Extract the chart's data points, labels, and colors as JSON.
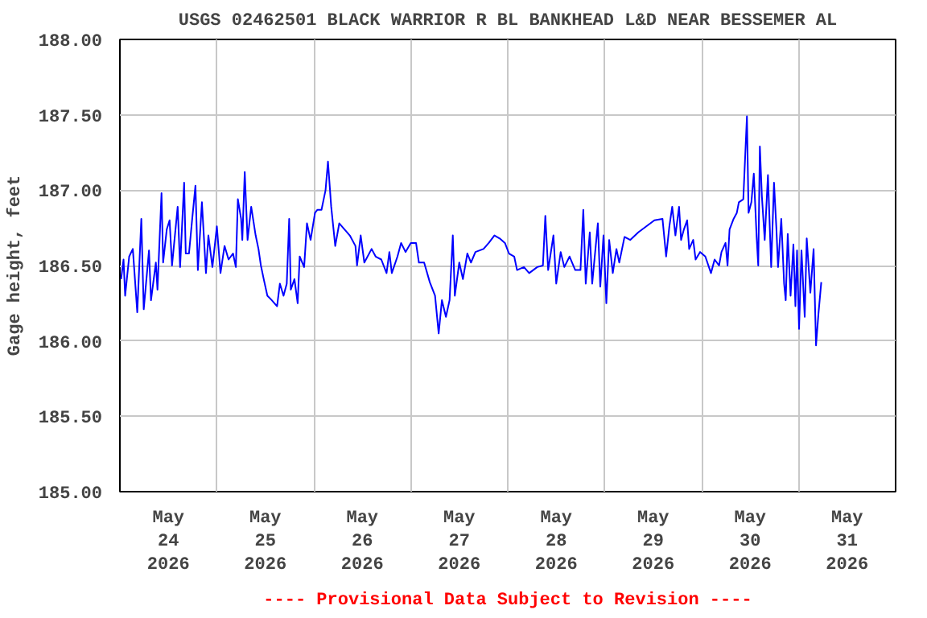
{
  "chart_data": {
    "type": "line",
    "title": "USGS 02462501 BLACK WARRIOR R BL BANKHEAD L&D NEAR BESSEMER AL",
    "ylabel": "Gage height, feet",
    "annotations": [
      "---- Provisional Data Subject to Revision ----"
    ],
    "xlim": [
      "2026-05-24T00:00",
      "2026-06-01T00:00"
    ],
    "ylim": [
      185,
      188
    ],
    "xticks": [
      {
        "value": "2026-05-24T00:00",
        "label": null
      },
      {
        "value": "2026-05-24T12:00",
        "label": "May\n24\n2026"
      },
      {
        "value": "2026-05-25T00:00",
        "label": null
      },
      {
        "value": "2026-05-25T12:00",
        "label": "May\n25\n2026"
      },
      {
        "value": "2026-05-26T00:00",
        "label": null
      },
      {
        "value": "2026-05-26T12:00",
        "label": "May\n26\n2026"
      },
      {
        "value": "2026-05-27T00:00",
        "label": null
      },
      {
        "value": "2026-05-27T12:00",
        "label": "May\n27\n2026"
      },
      {
        "value": "2026-05-28T00:00",
        "label": null
      },
      {
        "value": "2026-05-28T12:00",
        "label": "May\n28\n2026"
      },
      {
        "value": "2026-05-29T00:00",
        "label": null
      },
      {
        "value": "2026-05-29T12:00",
        "label": "May\n29\n2026"
      },
      {
        "value": "2026-05-30T00:00",
        "label": null
      },
      {
        "value": "2026-05-30T12:00",
        "label": "May\n30\n2026"
      },
      {
        "value": "2026-05-31T00:00",
        "label": null
      },
      {
        "value": "2026-05-31T12:00",
        "label": "May\n31\n2026"
      },
      {
        "value": "2026-06-01T00:00",
        "label": null
      }
    ],
    "yticks": [
      {
        "value": 185,
        "label": "185.00"
      },
      {
        "value": 185.5,
        "label": "185.50"
      },
      {
        "value": 186,
        "label": "186.00"
      },
      {
        "value": 186.5,
        "label": "186.50"
      },
      {
        "value": 187,
        "label": "187.00"
      },
      {
        "value": 187.5,
        "label": "187.50"
      },
      {
        "value": 188,
        "label": "188.00"
      }
    ],
    "grid": true,
    "marker": "none",
    "line_style": "solid",
    "series": [
      {
        "color": "#0000ff",
        "x": [
          "2026-05-24T00:18",
          "2026-05-24T00:54",
          "2026-05-24T01:18",
          "2026-05-24T02:18",
          "2026-05-24T03:12",
          "2026-05-24T04:18",
          "2026-05-24T05:18",
          "2026-05-24T05:54",
          "2026-05-24T07:12",
          "2026-05-24T07:42",
          "2026-05-24T08:54",
          "2026-05-24T09:18",
          "2026-05-24T10:18",
          "2026-05-24T10:42",
          "2026-05-24T11:36",
          "2026-05-24T12:18",
          "2026-05-24T12:54",
          "2026-05-24T14:18",
          "2026-05-24T14:54",
          "2026-05-24T15:54",
          "2026-05-24T16:18",
          "2026-05-24T17:06",
          "2026-05-24T17:54",
          "2026-05-24T18:42",
          "2026-05-24T19:18",
          "2026-05-24T20:18",
          "2026-05-24T21:18",
          "2026-05-24T21:54",
          "2026-05-24T22:54",
          "2026-05-25T00:00",
          "2026-05-25T00:54",
          "2026-05-25T01:54",
          "2026-05-25T02:54",
          "2026-05-25T04:00",
          "2026-05-25T04:42",
          "2026-05-25T05:12",
          "2026-05-25T06:00",
          "2026-05-25T06:18",
          "2026-05-25T06:54",
          "2026-05-25T07:36",
          "2026-05-25T08:30",
          "2026-05-25T09:36",
          "2026-05-25T10:18",
          "2026-05-25T10:54",
          "2026-05-25T11:36",
          "2026-05-25T12:30",
          "2026-05-25T13:36",
          "2026-05-25T14:54",
          "2026-05-25T15:36",
          "2026-05-25T16:30",
          "2026-05-25T17:18",
          "2026-05-25T17:54",
          "2026-05-25T18:18",
          "2026-05-25T19:12",
          "2026-05-25T20:00",
          "2026-05-25T20:30",
          "2026-05-25T21:36",
          "2026-05-25T22:18",
          "2026-05-25T23:12",
          "2026-05-26T00:18",
          "2026-05-26T00:54",
          "2026-05-26T01:54",
          "2026-05-26T02:54",
          "2026-05-26T03:30",
          "2026-05-26T04:18",
          "2026-05-26T05:18",
          "2026-05-26T06:18",
          "2026-05-26T07:36",
          "2026-05-26T08:54",
          "2026-05-26T10:18",
          "2026-05-26T10:42",
          "2026-05-26T11:36",
          "2026-05-26T12:30",
          "2026-05-26T14:18",
          "2026-05-26T15:18",
          "2026-05-26T16:42",
          "2026-05-26T18:00",
          "2026-05-26T18:42",
          "2026-05-26T19:18",
          "2026-05-26T20:42",
          "2026-05-26T21:36",
          "2026-05-26T22:42",
          "2026-05-27T00:00",
          "2026-05-27T01:18",
          "2026-05-27T02:00",
          "2026-05-27T03:18",
          "2026-05-27T04:42",
          "2026-05-27T06:00",
          "2026-05-27T06:54",
          "2026-05-27T07:42",
          "2026-05-27T08:42",
          "2026-05-27T09:36",
          "2026-05-27T10:24",
          "2026-05-27T10:54",
          "2026-05-27T12:00",
          "2026-05-27T12:54",
          "2026-05-27T14:00",
          "2026-05-27T14:54",
          "2026-05-27T16:00",
          "2026-05-27T18:00",
          "2026-05-27T19:18",
          "2026-05-27T20:42",
          "2026-05-27T22:00",
          "2026-05-27T23:18",
          "2026-05-28T00:18",
          "2026-05-28T01:36",
          "2026-05-28T02:18",
          "2026-05-28T04:00",
          "2026-05-28T05:18",
          "2026-05-28T07:18",
          "2026-05-28T08:42",
          "2026-05-28T09:18",
          "2026-05-28T10:00",
          "2026-05-28T11:18",
          "2026-05-28T12:00",
          "2026-05-28T13:06",
          "2026-05-28T14:00",
          "2026-05-28T15:18",
          "2026-05-28T16:42",
          "2026-05-28T18:00",
          "2026-05-28T18:42",
          "2026-05-28T19:18",
          "2026-05-28T20:18",
          "2026-05-28T20:54",
          "2026-05-28T22:18",
          "2026-05-28T22:54",
          "2026-05-28T23:42",
          "2026-05-29T00:24",
          "2026-05-29T01:06",
          "2026-05-29T02:00",
          "2026-05-29T02:54",
          "2026-05-29T03:36",
          "2026-05-29T04:54",
          "2026-05-29T06:18",
          "2026-05-29T08:18",
          "2026-05-29T10:18",
          "2026-05-29T12:18",
          "2026-05-29T14:18",
          "2026-05-29T15:12",
          "2026-05-29T16:00",
          "2026-05-29T16:42",
          "2026-05-29T17:30",
          "2026-05-29T18:24",
          "2026-05-29T18:54",
          "2026-05-29T19:36",
          "2026-05-29T20:24",
          "2026-05-29T20:54",
          "2026-05-29T21:54",
          "2026-05-29T22:30",
          "2026-05-29T23:36",
          "2026-05-30T00:54",
          "2026-05-30T02:18",
          "2026-05-30T03:12",
          "2026-05-30T04:18",
          "2026-05-30T04:54",
          "2026-05-30T05:54",
          "2026-05-30T06:24",
          "2026-05-30T06:54",
          "2026-05-30T07:54",
          "2026-05-30T08:42",
          "2026-05-30T09:12",
          "2026-05-30T10:18",
          "2026-05-30T11:12",
          "2026-05-30T11:36",
          "2026-05-30T12:18",
          "2026-05-30T12:54",
          "2026-05-30T13:36",
          "2026-05-30T14:00",
          "2026-05-30T14:24",
          "2026-05-30T14:54",
          "2026-05-30T15:36",
          "2026-05-30T16:24",
          "2026-05-30T17:12",
          "2026-05-30T17:54",
          "2026-05-30T18:30",
          "2026-05-30T18:54",
          "2026-05-30T19:42",
          "2026-05-30T20:24",
          "2026-05-30T20:48",
          "2026-05-30T21:18",
          "2026-05-30T22:00",
          "2026-05-30T22:42",
          "2026-05-30T23:12",
          "2026-05-30T23:36",
          "2026-05-31T00:06",
          "2026-05-31T00:42",
          "2026-05-31T01:30",
          "2026-05-31T02:00",
          "2026-05-31T02:54",
          "2026-05-31T03:42",
          "2026-05-31T04:18",
          "2026-05-31T04:54",
          "2026-05-31T05:36"
        ],
        "values": [
          186.41,
          186.54,
          186.3,
          186.56,
          186.61,
          186.19,
          186.81,
          186.21,
          186.6,
          186.27,
          186.52,
          186.34,
          186.98,
          186.52,
          186.74,
          186.8,
          186.5,
          186.89,
          186.49,
          187.05,
          186.58,
          186.58,
          186.81,
          187.03,
          186.47,
          186.92,
          186.45,
          186.7,
          186.49,
          186.76,
          186.45,
          186.63,
          186.54,
          186.58,
          186.49,
          186.94,
          186.81,
          186.67,
          187.12,
          186.67,
          186.89,
          186.7,
          186.61,
          186.5,
          186.41,
          186.3,
          186.27,
          186.23,
          186.38,
          186.3,
          186.38,
          186.81,
          186.34,
          186.41,
          186.25,
          186.56,
          186.49,
          186.78,
          186.67,
          186.85,
          186.87,
          186.87,
          187.0,
          187.19,
          186.89,
          186.63,
          186.78,
          186.74,
          186.7,
          186.63,
          186.5,
          186.7,
          186.52,
          186.61,
          186.56,
          186.54,
          186.45,
          186.59,
          186.45,
          186.56,
          186.65,
          186.59,
          186.65,
          186.65,
          186.52,
          186.52,
          186.39,
          186.3,
          186.05,
          186.27,
          186.16,
          186.27,
          186.7,
          186.3,
          186.52,
          186.41,
          186.58,
          186.52,
          186.59,
          186.61,
          186.65,
          186.7,
          186.68,
          186.65,
          186.58,
          186.56,
          186.47,
          186.49,
          186.45,
          186.49,
          186.5,
          186.83,
          186.47,
          186.7,
          186.38,
          186.59,
          186.49,
          186.56,
          186.47,
          186.47,
          186.87,
          186.38,
          186.72,
          186.38,
          186.78,
          186.36,
          186.7,
          186.25,
          186.67,
          186.45,
          186.61,
          186.52,
          186.69,
          186.67,
          186.72,
          186.76,
          186.8,
          186.81,
          186.56,
          186.76,
          186.89,
          186.7,
          186.89,
          186.67,
          186.74,
          186.8,
          186.61,
          186.67,
          186.54,
          186.59,
          186.56,
          186.45,
          186.54,
          186.5,
          186.59,
          186.65,
          186.5,
          186.74,
          186.81,
          186.85,
          186.92,
          186.94,
          187.49,
          186.85,
          186.92,
          187.11,
          186.69,
          186.5,
          187.29,
          186.96,
          186.67,
          187.1,
          186.49,
          187.05,
          186.74,
          186.49,
          186.81,
          186.38,
          186.27,
          186.71,
          186.3,
          186.64,
          186.23,
          186.6,
          186.08,
          186.6,
          186.16,
          186.68,
          186.32,
          186.61,
          185.97,
          186.18,
          186.39
        ]
      }
    ]
  }
}
